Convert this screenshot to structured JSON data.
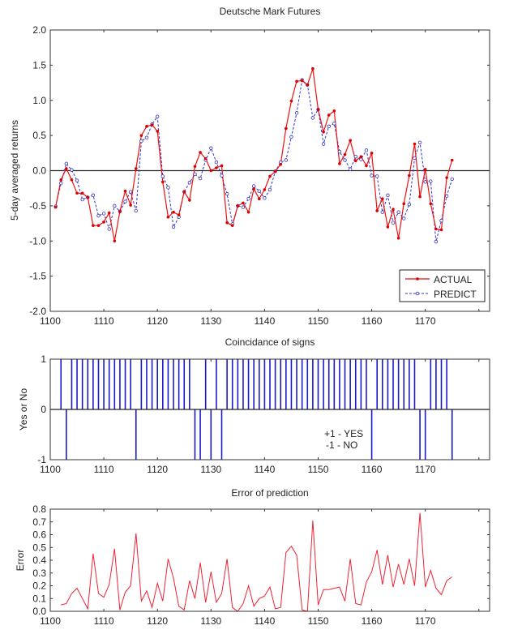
{
  "chart_data": [
    {
      "type": "line",
      "title": "Deutsche Mark Futures",
      "xlabel": "",
      "ylabel": "5-day averaged returns",
      "xlim": [
        1100,
        1182
      ],
      "ylim": [
        -2.0,
        2.0
      ],
      "xticks": [
        1100,
        1110,
        1120,
        1130,
        1140,
        1150,
        1160,
        1170,
        1180
      ],
      "xtick_labels": [
        "1100",
        "1110",
        "1120",
        "1130",
        "1140",
        "1150",
        "1160",
        "1170",
        ""
      ],
      "yticks": [
        2.0,
        1.5,
        1.0,
        0.5,
        0.0,
        -0.5,
        -1.0,
        -1.5,
        -2.0
      ],
      "ytick_labels": [
        "2.0",
        "1.5",
        "1.0",
        "0.5",
        "0.0",
        "-0.5",
        "-1.0",
        "-1.5",
        "-2.0"
      ],
      "zero_line": true,
      "grid": false,
      "legend": "bottom-right",
      "x_start": 1101,
      "series": [
        {
          "name": "ACTUAL",
          "color": "#e01010",
          "style": "solid-dot",
          "values": [
            -0.52,
            -0.13,
            0.03,
            -0.13,
            -0.32,
            -0.32,
            -0.38,
            -0.78,
            -0.78,
            -0.73,
            -0.6,
            -1.0,
            -0.58,
            -0.29,
            -0.49,
            0.03,
            0.5,
            0.63,
            0.65,
            0.56,
            -0.16,
            -0.66,
            -0.59,
            -0.63,
            -0.3,
            -0.42,
            0.06,
            0.26,
            0.17,
            0.0,
            0.04,
            0.07,
            -0.74,
            -0.78,
            -0.5,
            -0.46,
            -0.59,
            -0.26,
            -0.4,
            -0.27,
            -0.08,
            -0.01,
            0.09,
            0.6,
            0.99,
            1.27,
            1.28,
            1.22,
            1.45,
            0.87,
            0.55,
            0.79,
            0.85,
            0.1,
            0.23,
            0.43,
            0.14,
            0.2,
            0.07,
            0.25,
            -0.57,
            -0.4,
            -0.8,
            -0.55,
            -0.96,
            -0.47,
            -0.07,
            0.38,
            -0.37,
            0.02,
            -0.47,
            -0.83,
            -0.84,
            -0.1,
            0.15
          ]
        },
        {
          "name": "PREDICT",
          "color": "#3333cc",
          "style": "dashed-circle",
          "values": [
            -0.51,
            -0.18,
            0.1,
            0.01,
            -0.14,
            -0.41,
            -0.38,
            -0.35,
            -0.64,
            -0.61,
            -0.83,
            -0.5,
            -0.58,
            -0.44,
            -0.3,
            -0.57,
            0.42,
            0.47,
            0.66,
            0.77,
            -0.08,
            -0.24,
            -0.8,
            -0.66,
            -0.3,
            -0.17,
            -0.05,
            -0.11,
            0.15,
            0.32,
            0.12,
            -0.07,
            -0.33,
            -0.76,
            -0.5,
            -0.52,
            -0.4,
            -0.22,
            -0.29,
            -0.39,
            -0.27,
            -0.01,
            0.12,
            0.15,
            0.48,
            0.82,
            1.29,
            1.22,
            0.75,
            0.87,
            0.38,
            0.63,
            0.67,
            0.27,
            0.15,
            0.02,
            0.2,
            0.16,
            0.29,
            -0.07,
            -0.08,
            -0.59,
            -0.35,
            -0.74,
            -0.59,
            -0.68,
            -0.48,
            0.18,
            0.4,
            -0.16,
            -0.15,
            -1.01,
            -0.71,
            -0.36,
            -0.12
          ]
        }
      ]
    },
    {
      "type": "bar",
      "title": "Coincidance of signs",
      "xlabel": "",
      "ylabel": "Yes or No",
      "xlim": [
        1100,
        1182
      ],
      "ylim": [
        -1,
        1
      ],
      "xticks": [
        1100,
        1110,
        1120,
        1130,
        1140,
        1150,
        1160,
        1170,
        1180
      ],
      "xtick_labels": [
        "1100",
        "1110",
        "1120",
        "1130",
        "1140",
        "1150",
        "1160",
        "1170",
        ""
      ],
      "yticks": [
        1,
        0,
        -1
      ],
      "ytick_labels": [
        "1",
        "0",
        "-1"
      ],
      "annotation": [
        "+1 - YES",
        "-1 - NO"
      ],
      "x_start": 1102,
      "color": "#1a1acc",
      "values": [
        1,
        -1,
        1,
        1,
        1,
        1,
        1,
        1,
        1,
        1,
        1,
        1,
        1,
        1,
        -1,
        1,
        1,
        1,
        1,
        1,
        1,
        1,
        1,
        1,
        1,
        -1,
        -1,
        1,
        -1,
        1,
        -1,
        1,
        1,
        1,
        1,
        1,
        1,
        1,
        1,
        1,
        1,
        1,
        1,
        1,
        1,
        1,
        1,
        1,
        1,
        1,
        1,
        1,
        1,
        1,
        1,
        1,
        1,
        1,
        -1,
        1,
        1,
        1,
        1,
        1,
        1,
        1,
        1,
        -1,
        -1,
        1,
        1,
        1,
        1,
        -1
      ]
    },
    {
      "type": "line",
      "title": "Error of prediction",
      "xlabel": "",
      "ylabel": "Error",
      "xlim": [
        1100,
        1182
      ],
      "ylim": [
        0.0,
        0.8
      ],
      "xticks": [
        1100,
        1110,
        1120,
        1130,
        1140,
        1150,
        1160,
        1170,
        1180
      ],
      "xtick_labels": [
        "1100",
        "1110",
        "1120",
        "1130",
        "1140",
        "1150",
        "1160",
        "1170",
        ""
      ],
      "yticks": [
        0.8,
        0.7,
        0.6,
        0.5,
        0.4,
        0.3,
        0.2,
        0.1,
        0.0
      ],
      "ytick_labels": [
        "0.8",
        "0.7",
        "0.6",
        "0.5",
        "0.4",
        "0.3",
        "0.2",
        "0.1",
        "0.0"
      ],
      "x_start": 1102,
      "color": "#ee2233",
      "values": [
        0.05,
        0.06,
        0.14,
        0.18,
        0.1,
        0.02,
        0.45,
        0.14,
        0.11,
        0.21,
        0.49,
        0.01,
        0.15,
        0.2,
        0.61,
        0.08,
        0.16,
        0.03,
        0.22,
        0.08,
        0.41,
        0.26,
        0.04,
        0.01,
        0.24,
        0.1,
        0.38,
        0.07,
        0.31,
        0.07,
        0.14,
        0.41,
        0.03,
        0.0,
        0.06,
        0.2,
        0.04,
        0.1,
        0.12,
        0.19,
        0.02,
        0.03,
        0.46,
        0.51,
        0.44,
        0.01,
        0.0,
        0.71,
        0.05,
        0.17,
        0.17,
        0.18,
        0.19,
        0.08,
        0.41,
        0.06,
        0.05,
        0.23,
        0.31,
        0.48,
        0.21,
        0.44,
        0.19,
        0.37,
        0.21,
        0.41,
        0.2,
        0.77,
        0.19,
        0.32,
        0.18,
        0.13,
        0.24,
        0.27
      ]
    }
  ]
}
